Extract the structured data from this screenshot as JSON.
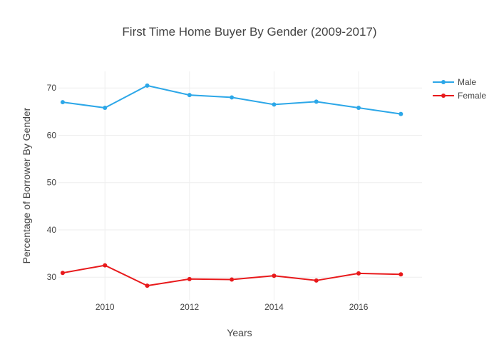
{
  "chart_data": {
    "type": "line",
    "title": "First Time Home Buyer By Gender (2009-2017)",
    "xlabel": "Years",
    "ylabel": "Percentage of Borrower By Gender",
    "x": [
      2009,
      2010,
      2011,
      2012,
      2013,
      2014,
      2015,
      2016,
      2017
    ],
    "xlim": [
      2008.9,
      2017.5
    ],
    "ylim": [
      25.2,
      73.5
    ],
    "xticks": [
      2010,
      2012,
      2014,
      2016
    ],
    "yticks": [
      30,
      40,
      50,
      60,
      70
    ],
    "grid": true,
    "legend_position": "top-right",
    "series": [
      {
        "name": "Male",
        "color": "#2ca7e8",
        "values": [
          67.0,
          65.8,
          70.5,
          68.5,
          68.0,
          66.5,
          67.1,
          65.8,
          64.5
        ]
      },
      {
        "name": "Female",
        "color": "#e8191b",
        "values": [
          30.9,
          32.5,
          28.2,
          29.6,
          29.5,
          30.3,
          29.3,
          30.8,
          30.6
        ]
      }
    ]
  }
}
